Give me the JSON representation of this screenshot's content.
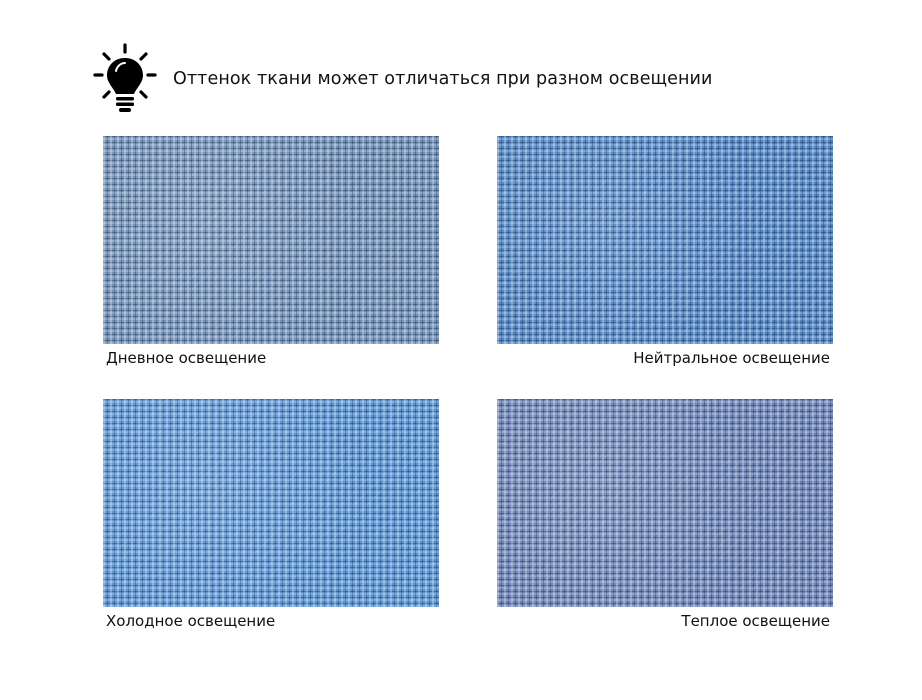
{
  "header": {
    "icon": "lightbulb-icon",
    "title": "Оттенок ткани может отличаться при разном освещении"
  },
  "swatches": [
    {
      "label": "Дневное освещение",
      "color": "#6f8fb6"
    },
    {
      "label": "Нейтральное освещение",
      "color": "#4f85c4"
    },
    {
      "label": "Холодное освещение",
      "color": "#5b93d0"
    },
    {
      "label": "Теплое освещение",
      "color": "#6b82b3"
    }
  ]
}
